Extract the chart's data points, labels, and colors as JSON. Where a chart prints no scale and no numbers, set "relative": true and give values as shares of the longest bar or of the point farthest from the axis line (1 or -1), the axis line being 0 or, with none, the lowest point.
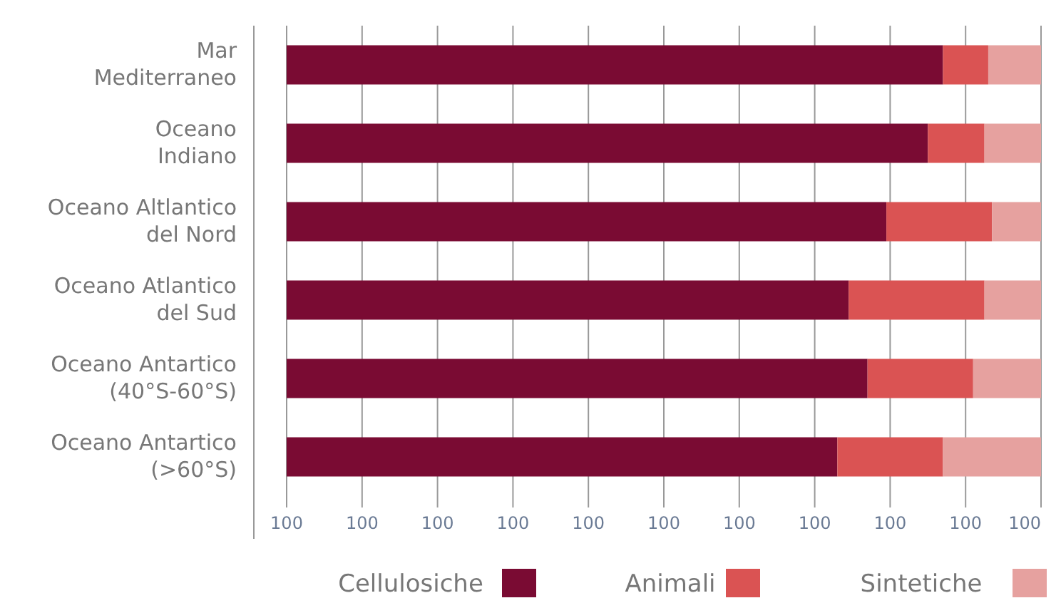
{
  "chart_data": {
    "type": "bar",
    "orientation": "horizontal",
    "stacked": true,
    "relative": true,
    "categories": [
      "Mar\nMediterraneo",
      "Oceano\nIndiano",
      "Oceano Altlantico\ndel Nord",
      "Oceano Atlantico\ndel Sud",
      "Oceano Antartico\n(40°S-60°S)",
      "Oceano Antartico\n(>60°S)"
    ],
    "series": [
      {
        "name": "Cellulosiche",
        "color": "#7a0b33",
        "values": [
          0.87,
          0.85,
          0.795,
          0.745,
          0.77,
          0.73
        ]
      },
      {
        "name": "Animali",
        "color": "#da5353",
        "values": [
          0.06,
          0.075,
          0.14,
          0.18,
          0.14,
          0.14
        ]
      },
      {
        "name": "Sintetiche",
        "color": "#e6a19f",
        "values": [
          0.07,
          0.075,
          0.065,
          0.075,
          0.09,
          0.13
        ]
      }
    ],
    "annotations": [
      "100",
      "100",
      "100",
      "100",
      "100",
      "100",
      "100",
      "100",
      "100",
      "100",
      "100"
    ],
    "grid": "x",
    "legend": "bottom"
  }
}
